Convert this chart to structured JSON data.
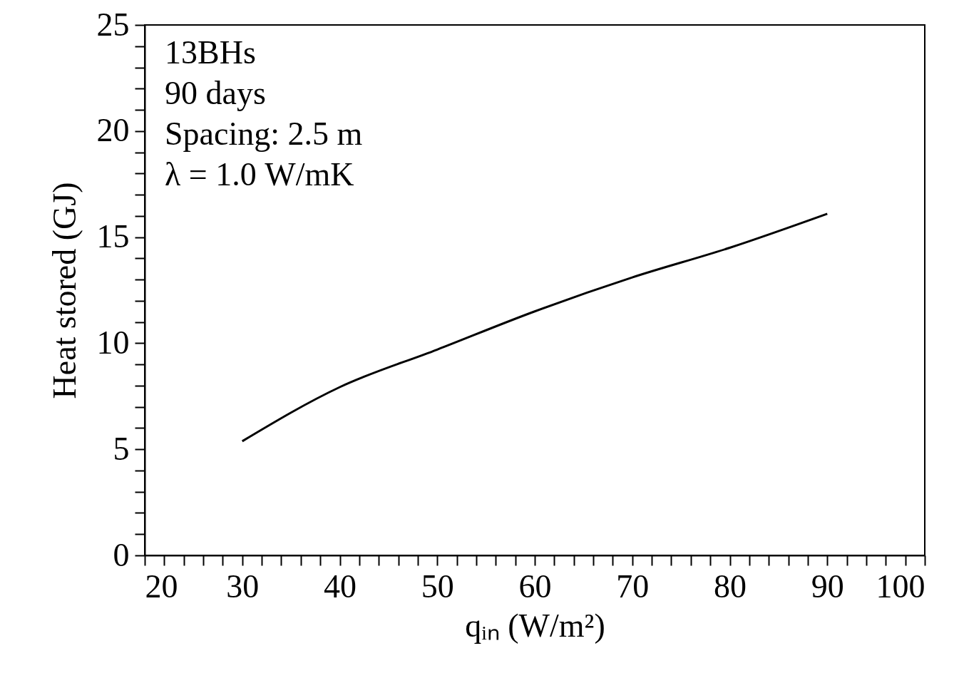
{
  "chart_data": {
    "type": "line",
    "xlabel": "qᵢₙ (W/m²)",
    "ylabel": "Heat stored (GJ)",
    "annotations": [
      "13BHs",
      "90 days",
      "Spacing: 2.5 m",
      "λ = 1.0 W/mK"
    ],
    "x": [
      30,
      40,
      50,
      60,
      70,
      80,
      90
    ],
    "series": [
      {
        "color": "#000000",
        "values": [
          5.38,
          7.93,
          9.7,
          11.5,
          13.1,
          14.5,
          16.1
        ]
      }
    ],
    "xlim": [
      20,
      100
    ],
    "xticks": [
      20,
      {
        "value": 22,
        "label": null
      },
      {
        "value": 24,
        "label": null
      },
      {
        "value": 26,
        "label": null
      },
      {
        "value": 28,
        "label": null
      },
      30,
      {
        "value": 32,
        "label": null
      },
      {
        "value": 34,
        "label": null
      },
      {
        "value": 36,
        "label": null
      },
      {
        "value": 38,
        "label": null
      },
      40,
      {
        "value": 42,
        "label": null
      },
      {
        "value": 44,
        "label": null
      },
      {
        "value": 46,
        "label": null
      },
      {
        "value": 48,
        "label": null
      },
      50,
      {
        "value": 52,
        "label": null
      },
      {
        "value": 54,
        "label": null
      },
      {
        "value": 56,
        "label": null
      },
      {
        "value": 58,
        "label": null
      },
      60,
      {
        "value": 62,
        "label": null
      },
      {
        "value": 64,
        "label": null
      },
      {
        "value": 66,
        "label": null
      },
      {
        "value": 68,
        "label": null
      },
      70,
      {
        "value": 72,
        "label": null
      },
      {
        "value": 74,
        "label": null
      },
      {
        "value": 76,
        "label": null
      },
      {
        "value": 78,
        "label": null
      },
      80,
      {
        "value": 82,
        "label": null
      },
      {
        "value": 84,
        "label": null
      },
      {
        "value": 86,
        "label": null
      },
      {
        "value": 88,
        "label": null
      },
      90,
      {
        "value": 92,
        "label": null
      },
      {
        "value": 94,
        "label": null
      },
      {
        "value": 96,
        "label": null
      },
      {
        "value": 98,
        "label": null
      },
      100
    ],
    "ylim": [
      0,
      25
    ],
    "yticks": [
      0,
      {
        "value": 1,
        "label": null
      },
      {
        "value": 2,
        "label": null
      },
      {
        "value": 3,
        "label": null
      },
      {
        "value": 4,
        "label": null
      },
      5,
      {
        "value": 6,
        "label": null
      },
      {
        "value": 7,
        "label": null
      },
      {
        "value": 8,
        "label": null
      },
      {
        "value": 9,
        "label": null
      },
      10,
      {
        "value": 11,
        "label": null
      },
      {
        "value": 12,
        "label": null
      },
      {
        "value": 13,
        "label": null
      },
      {
        "value": 14,
        "label": null
      },
      15,
      {
        "value": 16,
        "label": null
      },
      {
        "value": 17,
        "label": null
      },
      {
        "value": 18,
        "label": null
      },
      {
        "value": 19,
        "label": null
      },
      20,
      {
        "value": 21,
        "label": null
      },
      {
        "value": 22,
        "label": null
      },
      {
        "value": 23,
        "label": null
      },
      {
        "value": 24,
        "label": null
      },
      25
    ],
    "grid": false,
    "marker": "none",
    "line_style": "solid"
  }
}
